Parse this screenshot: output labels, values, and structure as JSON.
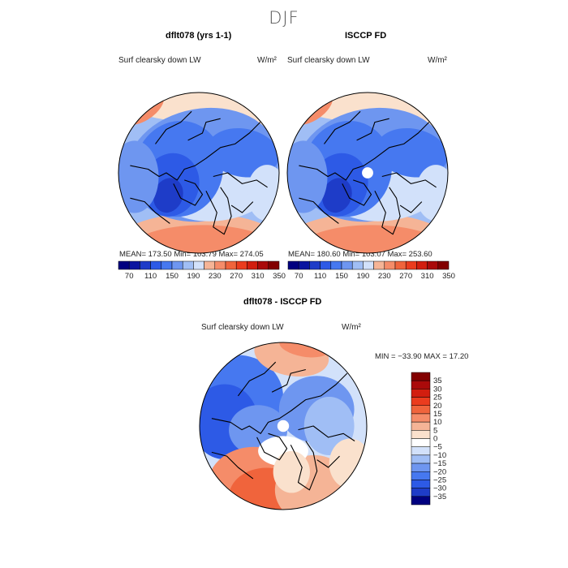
{
  "figure": {
    "title": "DJF"
  },
  "palette": {
    "blue": [
      "#000080",
      "#0a14a0",
      "#1e3cc8",
      "#2d5ae6",
      "#4678f0",
      "#6e96f0",
      "#a0bef5",
      "#d2e1fa"
    ],
    "red": [
      "#fae1cd",
      "#f5b496",
      "#f58c69",
      "#f0643c",
      "#eb3c1e",
      "#d21e0f",
      "#aa0a0a",
      "#820000"
    ],
    "coast": "#000000"
  },
  "chart_data": [
    {
      "type": "heatmap",
      "projection": "north-polar-stereographic",
      "title": "dflt078 (yrs 1-1)",
      "variable": "Surf clearsky down LW",
      "units": "W/m²",
      "stats": {
        "mean": 173.5,
        "min": 103.79,
        "max": 274.05
      },
      "stats_text": "MEAN=  173.50   Min=  103.79   Max=  274.05",
      "colorbar": {
        "levels": [
          70,
          90,
          110,
          130,
          150,
          170,
          190,
          210,
          230,
          250,
          270,
          290,
          310,
          330,
          350
        ],
        "tick_labels": [
          "70",
          "110",
          "150",
          "190",
          "230",
          "270",
          "310",
          "350"
        ]
      }
    },
    {
      "type": "heatmap",
      "projection": "north-polar-stereographic",
      "title": "ISCCP FD",
      "variable": "Surf clearsky down LW",
      "units": "W/m²",
      "stats": {
        "mean": 180.6,
        "min": 103.07,
        "max": 253.6
      },
      "stats_text": "MEAN=  180.60   Min=  103.07   Max=  253.60",
      "colorbar": {
        "levels": [
          70,
          90,
          110,
          130,
          150,
          170,
          190,
          210,
          230,
          250,
          270,
          290,
          310,
          330,
          350
        ],
        "tick_labels": [
          "70",
          "110",
          "150",
          "190",
          "230",
          "270",
          "310",
          "350"
        ]
      }
    },
    {
      "type": "heatmap",
      "projection": "north-polar-stereographic",
      "title": "dflt078 - ISCCP FD",
      "variable": "Surf clearsky down LW",
      "units": "W/m²",
      "stats": {
        "min": -33.9,
        "max": 17.2
      },
      "stats_text": "MIN = −33.90  MAX =   17.20",
      "colorbar": {
        "orientation": "vertical",
        "tick_labels": [
          "35",
          "30",
          "25",
          "20",
          "15",
          "10",
          "5",
          "0",
          "−5",
          "−10",
          "−15",
          "−20",
          "−25",
          "−30",
          "−35"
        ]
      }
    }
  ]
}
